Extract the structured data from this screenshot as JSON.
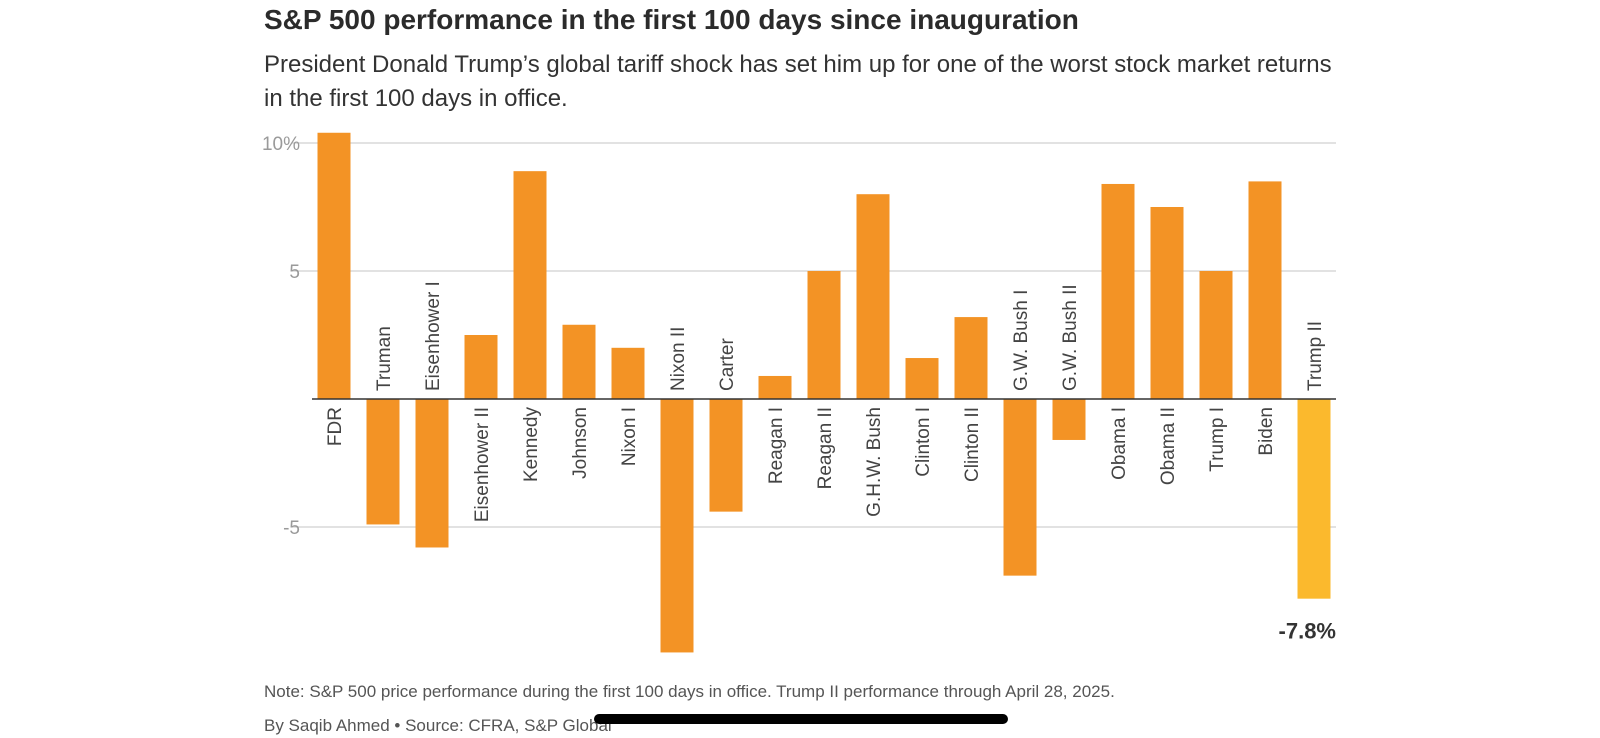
{
  "header": {
    "title": "S&P 500 performance in the first 100 days since inauguration",
    "subtitle": "President Donald Trump’s global tariff shock has set him up for one of the worst stock market returns in the first 100 days in office."
  },
  "footer": {
    "note": "Note: S&P 500 price performance during the first 100 days in office. Trump II performance through April 28, 2025.",
    "byline": "By Saqib Ahmed • Source: CFRA, S&P Global"
  },
  "colors": {
    "bar": "#f39325",
    "highlight_bar": "#fbb92d",
    "grid": "#d0d0d0",
    "axis": "#333333",
    "tick_label": "#9a9a9a",
    "category_label": "#444444"
  },
  "chart_data": {
    "type": "bar",
    "title": "S&P 500 performance in the first 100 days since inauguration",
    "categories": [
      "FDR",
      "Truman",
      "Eisenhower I",
      "Eisenhower II",
      "Kennedy",
      "Johnson",
      "Nixon I",
      "Nixon II",
      "Carter",
      "Reagan I",
      "Reagan II",
      "G.H.W. Bush",
      "Clinton I",
      "Clinton II",
      "G.W. Bush I",
      "G.W. Bush II",
      "Obama I",
      "Obama II",
      "Trump I",
      "Biden",
      "Trump II"
    ],
    "values": [
      10.4,
      -4.9,
      -5.8,
      2.5,
      8.9,
      2.9,
      2.0,
      -9.9,
      -4.4,
      0.9,
      5.0,
      8.0,
      1.6,
      3.2,
      -6.9,
      -1.6,
      8.4,
      7.5,
      5.0,
      8.5,
      -7.8
    ],
    "highlight": "Trump II",
    "highlight_label": "-7.8%",
    "yticks": [
      {
        "value": 10,
        "label": "10%"
      },
      {
        "value": 5,
        "label": "5"
      },
      {
        "value": -5,
        "label": "-5"
      }
    ],
    "ylim": [
      -10,
      10.4
    ],
    "grid": true,
    "xlabel": "",
    "ylabel": ""
  }
}
